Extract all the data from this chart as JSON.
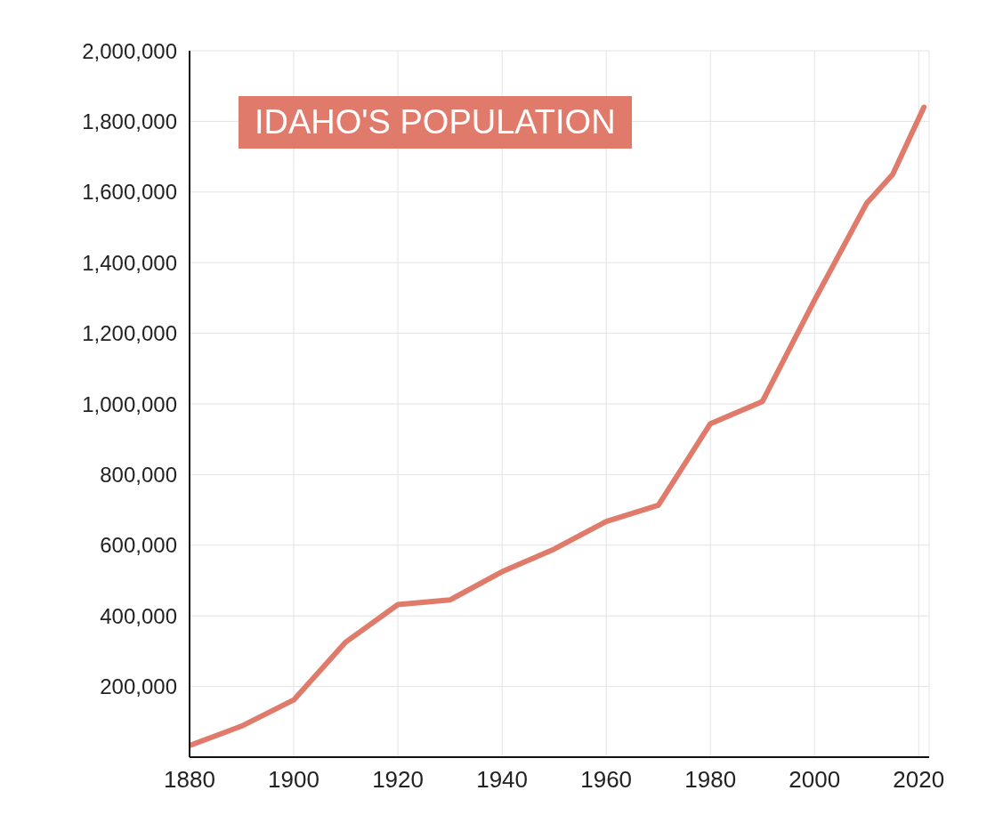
{
  "chart_data": {
    "type": "line",
    "title": "IDAHO'S POPULATION",
    "x": [
      1880,
      1890,
      1900,
      1910,
      1920,
      1930,
      1940,
      1950,
      1960,
      1970,
      1980,
      1990,
      2000,
      2010,
      2015,
      2021
    ],
    "series": [
      {
        "color": "#e07b6b",
        "values": [
          33000,
          88000,
          162000,
          326000,
          432000,
          445000,
          525000,
          589000,
          667000,
          713000,
          944000,
          1007000,
          1294000,
          1568000,
          1650000,
          1840000
        ]
      }
    ],
    "xlim": [
      1880,
      2022
    ],
    "xticks": [
      1880,
      1900,
      1920,
      1940,
      1960,
      1980,
      2000,
      2020
    ],
    "ylim": [
      0,
      2000000
    ],
    "yticks": [
      {
        "value": 200000,
        "label": "200,000"
      },
      {
        "value": 400000,
        "label": "400,000"
      },
      {
        "value": 600000,
        "label": "600,000"
      },
      {
        "value": 800000,
        "label": "800,000"
      },
      {
        "value": 1000000,
        "label": "1,000,000"
      },
      {
        "value": 1200000,
        "label": "1,200,000"
      },
      {
        "value": 1400000,
        "label": "1,400,000"
      },
      {
        "value": 1600000,
        "label": "1,600,000"
      },
      {
        "value": 1800000,
        "label": "1,800,000"
      },
      {
        "value": 2000000,
        "label": "2,000,000"
      }
    ],
    "grid": true,
    "marker": "none",
    "line_style": "solid",
    "legend": false
  }
}
